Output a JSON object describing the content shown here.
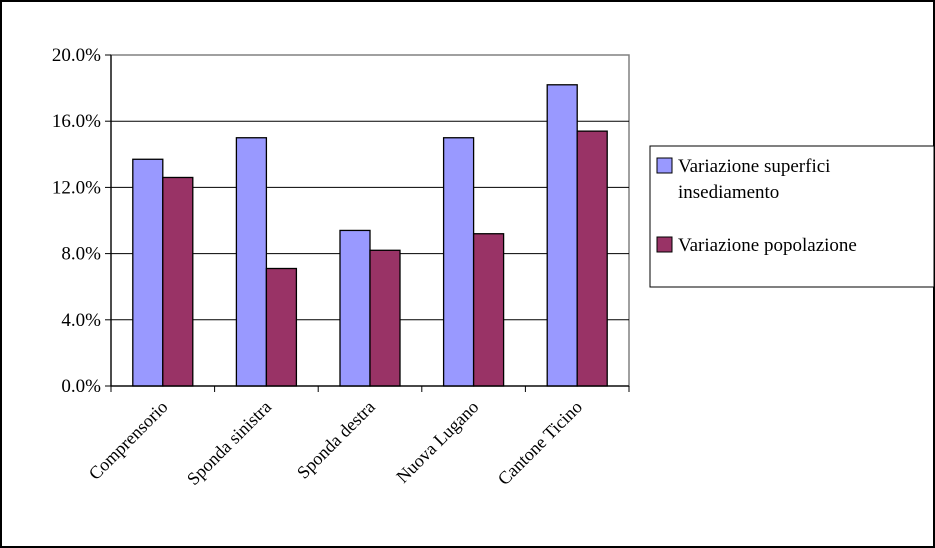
{
  "chart_data": {
    "type": "bar",
    "categories": [
      "Comprensorio",
      "Sponda sinistra",
      "Sponda destra",
      "Nuova Lugano",
      "Cantone Ticino"
    ],
    "series": [
      {
        "name": "Variazione superfici insediamento",
        "name_lines": [
          "Variazione superfici",
          "insediamento"
        ],
        "values": [
          13.7,
          15.0,
          9.4,
          15.0,
          18.2
        ],
        "color": "#9999ff"
      },
      {
        "name": "Variazione popolazione",
        "name_lines": [
          "Variazione popolazione"
        ],
        "values": [
          12.6,
          7.1,
          8.2,
          9.2,
          15.4
        ],
        "color": "#993366"
      }
    ],
    "yticks": [
      "0.0%",
      "4.0%",
      "8.0%",
      "12.0%",
      "16.0%",
      "20.0%"
    ],
    "ylim": [
      0,
      20
    ],
    "title": "",
    "xlabel": "",
    "ylabel": "",
    "grid": true,
    "legend_position": "right"
  }
}
